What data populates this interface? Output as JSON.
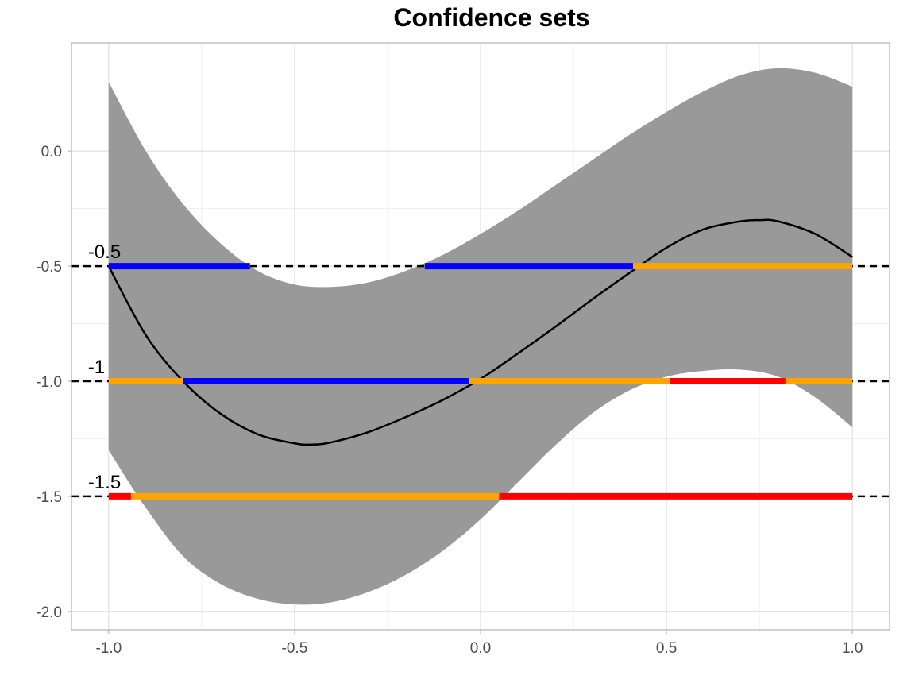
{
  "chart_data": {
    "type": "line",
    "title": "Confidence sets",
    "xlabel": "",
    "ylabel": "",
    "xlim": [
      -1.1,
      1.1
    ],
    "ylim": [
      -2.08,
      0.47
    ],
    "x_ticks": [
      -1.0,
      -0.5,
      0.0,
      0.5,
      1.0
    ],
    "x_tick_labels": [
      "-1.0",
      "-0.5",
      "0.0",
      "0.5",
      "1.0"
    ],
    "y_ticks": [
      -2.0,
      -1.5,
      -1.0,
      -0.5,
      0.0
    ],
    "y_tick_labels": [
      "-2.0",
      "-1.5",
      "-1.0",
      "-0.5",
      "0.0"
    ],
    "grid": true,
    "legend": "none",
    "colors": {
      "band": "#999999",
      "curve": "#000000",
      "reference_line": "#000000",
      "blue": "#0000ff",
      "orange": "#ffa500",
      "red": "#ff0000"
    },
    "curve": {
      "x": [
        -1.0,
        -0.9,
        -0.8,
        -0.7,
        -0.6,
        -0.5,
        -0.45,
        -0.4,
        -0.3,
        -0.2,
        -0.1,
        0.0,
        0.1,
        0.2,
        0.3,
        0.4,
        0.5,
        0.6,
        0.7,
        0.75,
        0.8,
        0.9,
        1.0
      ],
      "y": [
        -0.5,
        -0.8,
        -1.0,
        -1.14,
        -1.23,
        -1.27,
        -1.275,
        -1.265,
        -1.22,
        -1.155,
        -1.08,
        -0.99,
        -0.88,
        -0.765,
        -0.645,
        -0.53,
        -0.42,
        -0.34,
        -0.305,
        -0.3,
        -0.305,
        -0.36,
        -0.46
      ]
    },
    "band": {
      "x": [
        -1.0,
        -0.9,
        -0.8,
        -0.7,
        -0.6,
        -0.5,
        -0.4,
        -0.3,
        -0.2,
        -0.1,
        0.0,
        0.1,
        0.2,
        0.3,
        0.4,
        0.5,
        0.6,
        0.7,
        0.8,
        0.9,
        1.0
      ],
      "upper": [
        0.3,
        0.0,
        -0.23,
        -0.4,
        -0.52,
        -0.58,
        -0.59,
        -0.57,
        -0.52,
        -0.45,
        -0.36,
        -0.26,
        -0.15,
        -0.04,
        0.07,
        0.17,
        0.26,
        0.33,
        0.36,
        0.34,
        0.28
      ],
      "lower": [
        -1.3,
        -1.55,
        -1.76,
        -1.88,
        -1.945,
        -1.97,
        -1.96,
        -1.915,
        -1.84,
        -1.735,
        -1.6,
        -1.44,
        -1.28,
        -1.14,
        -1.04,
        -0.98,
        -0.955,
        -0.95,
        -0.98,
        -1.07,
        -1.2
      ]
    },
    "levels": [
      {
        "label": "-0.5",
        "y": -0.5,
        "segments": [
          {
            "from": -1.0,
            "to": -0.62,
            "color": "blue"
          },
          {
            "from": -0.15,
            "to": 0.41,
            "color": "blue"
          },
          {
            "from": 0.41,
            "to": 1.0,
            "color": "orange"
          }
        ]
      },
      {
        "label": "-1",
        "y": -1.0,
        "segments": [
          {
            "from": -1.0,
            "to": -0.8,
            "color": "orange"
          },
          {
            "from": -0.8,
            "to": -0.03,
            "color": "blue"
          },
          {
            "from": -0.03,
            "to": 0.51,
            "color": "orange"
          },
          {
            "from": 0.51,
            "to": 0.82,
            "color": "red"
          },
          {
            "from": 0.82,
            "to": 1.0,
            "color": "orange"
          }
        ]
      },
      {
        "label": "-1.5",
        "y": -1.5,
        "segments": [
          {
            "from": -1.0,
            "to": -0.94,
            "color": "red"
          },
          {
            "from": -0.94,
            "to": 0.05,
            "color": "orange"
          },
          {
            "from": 0.05,
            "to": 1.0,
            "color": "red"
          }
        ]
      }
    ]
  }
}
